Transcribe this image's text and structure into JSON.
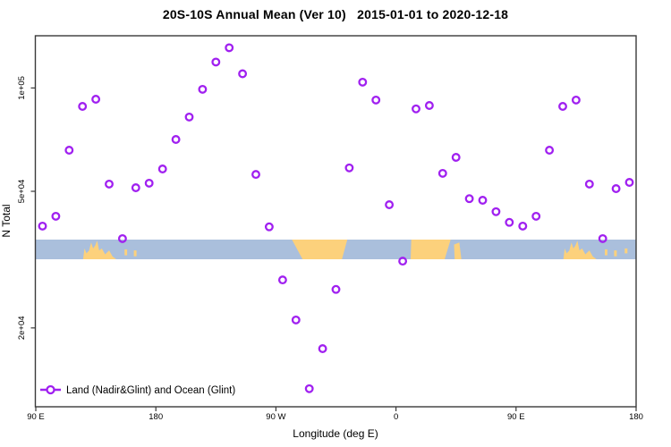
{
  "header": {
    "title": "20S-10S Annual Mean (Ver 10)   2015-01-01 to 2020-12-18"
  },
  "chart_data": {
    "type": "scatter",
    "title": "20S-10S Annual Mean (Ver 10)   2015-01-01 to 2020-12-18",
    "xlabel": "Longitude (deg E)",
    "ylabel": "N Total",
    "y_scale": "log10",
    "y_range": [
      11800,
      142000
    ],
    "x_axis_span_deg": [
      90,
      540
    ],
    "x_ticks": [
      {
        "lon": 90,
        "label": "90 E"
      },
      {
        "lon": 180,
        "label": "180"
      },
      {
        "lon": 270,
        "label": "90 W"
      },
      {
        "lon": 360,
        "label": "0"
      },
      {
        "lon": 450,
        "label": "90 E"
      },
      {
        "lon": 540,
        "label": "180"
      }
    ],
    "y_ticks": [
      {
        "value": 20000,
        "label": "2e+04"
      },
      {
        "value": 50000,
        "label": "5e+04"
      },
      {
        "value": 100000,
        "label": "1e+05"
      }
    ],
    "legend": {
      "label": "Land (Nadir&Glint) and Ocean (Glint)"
    },
    "colors": {
      "marker": "#A020F0",
      "ocean_band": "#aabfdc",
      "land": "#fcd17c",
      "axis": "#3a3a3a",
      "text": "#000000"
    },
    "series": [
      {
        "name": "Land (Nadir&Glint) and Ocean (Glint)",
        "marker": "open-circle",
        "points": [
          [
            95,
            39600
          ],
          [
            105,
            42300
          ],
          [
            115,
            65900
          ],
          [
            125,
            88400
          ],
          [
            135,
            92700
          ],
          [
            145,
            52500
          ],
          [
            155,
            36400
          ],
          [
            165,
            51200
          ],
          [
            175,
            52800
          ],
          [
            185,
            58100
          ],
          [
            195,
            70800
          ],
          [
            205,
            82300
          ],
          [
            215,
            99100
          ],
          [
            225,
            119000
          ],
          [
            235,
            131000
          ],
          [
            245,
            110000
          ],
          [
            255,
            56000
          ],
          [
            265,
            39400
          ],
          [
            275,
            27600
          ],
          [
            285,
            21100
          ],
          [
            295,
            13300
          ],
          [
            305,
            17400
          ],
          [
            315,
            25900
          ],
          [
            325,
            58500
          ],
          [
            335,
            104000
          ],
          [
            345,
            92200
          ],
          [
            355,
            45700
          ],
          [
            365,
            31300
          ],
          [
            375,
            86900
          ],
          [
            385,
            88900
          ],
          [
            395,
            56400
          ],
          [
            405,
            62800
          ],
          [
            415,
            47600
          ],
          [
            425,
            47100
          ],
          [
            435,
            43600
          ],
          [
            445,
            40600
          ],
          [
            455,
            39600
          ],
          [
            465,
            42300
          ],
          [
            475,
            65900
          ],
          [
            485,
            88400
          ],
          [
            495,
            92200
          ],
          [
            505,
            52500
          ],
          [
            515,
            36400
          ],
          [
            525,
            50900
          ],
          [
            535,
            53100
          ]
        ]
      }
    ],
    "map_band": {
      "description": "20S-10S latitude strip map: ocean blue band with land patches",
      "patches": [
        {
          "name": "australia-indonesia",
          "poly": [
            [
              125.5,
              1
            ],
            [
              126.5,
              0.45
            ],
            [
              128,
              0.7
            ],
            [
              130,
              0.55
            ],
            [
              131.5,
              0.15
            ],
            [
              133,
              0.45
            ],
            [
              134.5,
              0.3
            ],
            [
              136,
              0.05
            ],
            [
              137.5,
              0.55
            ],
            [
              139.5,
              0.45
            ],
            [
              142,
              0.75
            ],
            [
              145,
              0.55
            ],
            [
              147.5,
              0.85
            ],
            [
              150.3,
              1
            ]
          ]
        },
        {
          "name": "melanesia-island",
          "poly": [
            [
              156.5,
              0.8
            ],
            [
              156.5,
              0.5
            ],
            [
              158.5,
              0.5
            ],
            [
              158.5,
              0.8
            ]
          ]
        },
        {
          "name": "melanesia-island",
          "poly": [
            [
              163.5,
              0.85
            ],
            [
              163.5,
              0.55
            ],
            [
              165.5,
              0.55
            ],
            [
              165.5,
              0.85
            ]
          ]
        },
        {
          "name": "south-america",
          "poly": [
            [
              282,
              0
            ],
            [
              323.5,
              0
            ],
            [
              319.5,
              1
            ],
            [
              290,
              1
            ]
          ]
        },
        {
          "name": "africa",
          "poly": [
            [
              371.5,
              0
            ],
            [
              401,
              0
            ],
            [
              396.5,
              1
            ],
            [
              371,
              1
            ]
          ]
        },
        {
          "name": "madagascar",
          "poly": [
            [
              403.5,
              0.25
            ],
            [
              407.5,
              0.15
            ],
            [
              409,
              1
            ],
            [
              404,
              1
            ]
          ]
        },
        {
          "name": "australia-indonesia",
          "poly": [
            [
              485.5,
              1
            ],
            [
              486.5,
              0.45
            ],
            [
              488,
              0.7
            ],
            [
              490,
              0.55
            ],
            [
              491.5,
              0.15
            ],
            [
              493,
              0.45
            ],
            [
              494.5,
              0.3
            ],
            [
              496,
              0.05
            ],
            [
              497.5,
              0.55
            ],
            [
              499.5,
              0.45
            ],
            [
              502,
              0.75
            ],
            [
              505,
              0.55
            ],
            [
              507.5,
              0.85
            ],
            [
              510.3,
              1
            ]
          ]
        },
        {
          "name": "melanesia-island",
          "poly": [
            [
              516.5,
              0.8
            ],
            [
              516.5,
              0.5
            ],
            [
              518.5,
              0.5
            ],
            [
              518.5,
              0.8
            ]
          ]
        },
        {
          "name": "melanesia-island",
          "poly": [
            [
              523.5,
              0.85
            ],
            [
              523.5,
              0.55
            ],
            [
              525.5,
              0.55
            ],
            [
              525.5,
              0.85
            ]
          ]
        },
        {
          "name": "melanesia-island",
          "poly": [
            [
              531.5,
              0.7
            ],
            [
              531.5,
              0.45
            ],
            [
              533.5,
              0.45
            ],
            [
              533.5,
              0.7
            ]
          ]
        }
      ]
    }
  }
}
